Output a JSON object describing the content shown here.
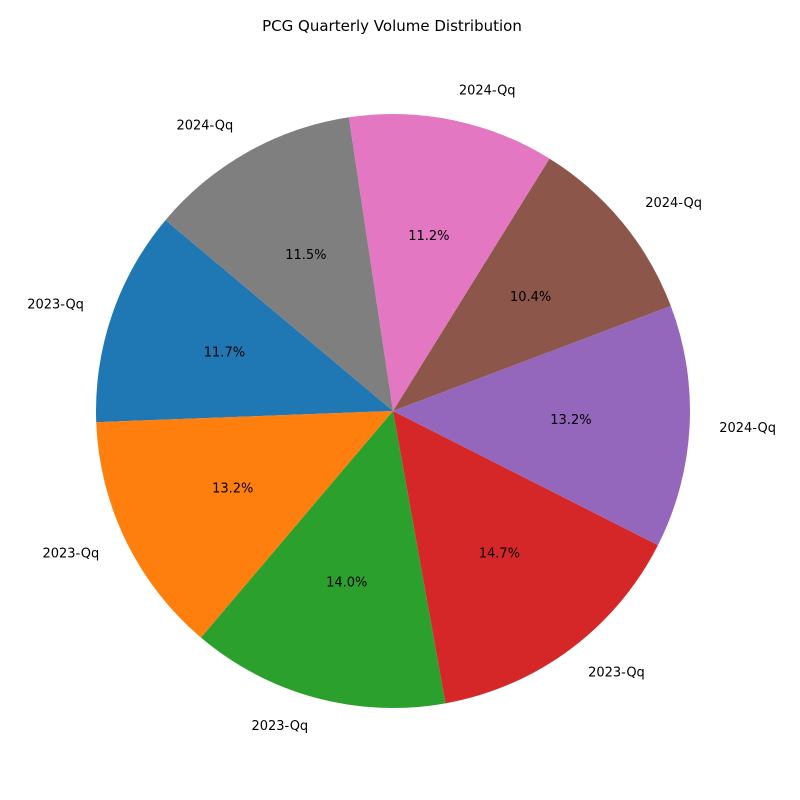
{
  "chart_data": {
    "type": "pie",
    "title": "PCG Quarterly Volume Distribution",
    "start_angle_deg": 140,
    "direction": "counterclockwise",
    "slices": [
      {
        "label": "2023-Qq",
        "value": 11.7,
        "pct_text": "11.7%",
        "color": "#1f77b4"
      },
      {
        "label": "2023-Qq",
        "value": 13.2,
        "pct_text": "13.2%",
        "color": "#ff7f0e"
      },
      {
        "label": "2023-Qq",
        "value": 14.0,
        "pct_text": "14.0%",
        "color": "#2ca02c"
      },
      {
        "label": "2023-Qq",
        "value": 14.7,
        "pct_text": "14.7%",
        "color": "#d62728"
      },
      {
        "label": "2024-Qq",
        "value": 13.2,
        "pct_text": "13.2%",
        "color": "#9467bd"
      },
      {
        "label": "2024-Qq",
        "value": 10.4,
        "pct_text": "10.4%",
        "color": "#8c564b"
      },
      {
        "label": "2024-Qq",
        "value": 11.2,
        "pct_text": "11.2%",
        "color": "#e377c2"
      },
      {
        "label": "2024-Qq",
        "value": 11.5,
        "pct_text": "11.5%",
        "color": "#7f7f7f"
      }
    ]
  }
}
